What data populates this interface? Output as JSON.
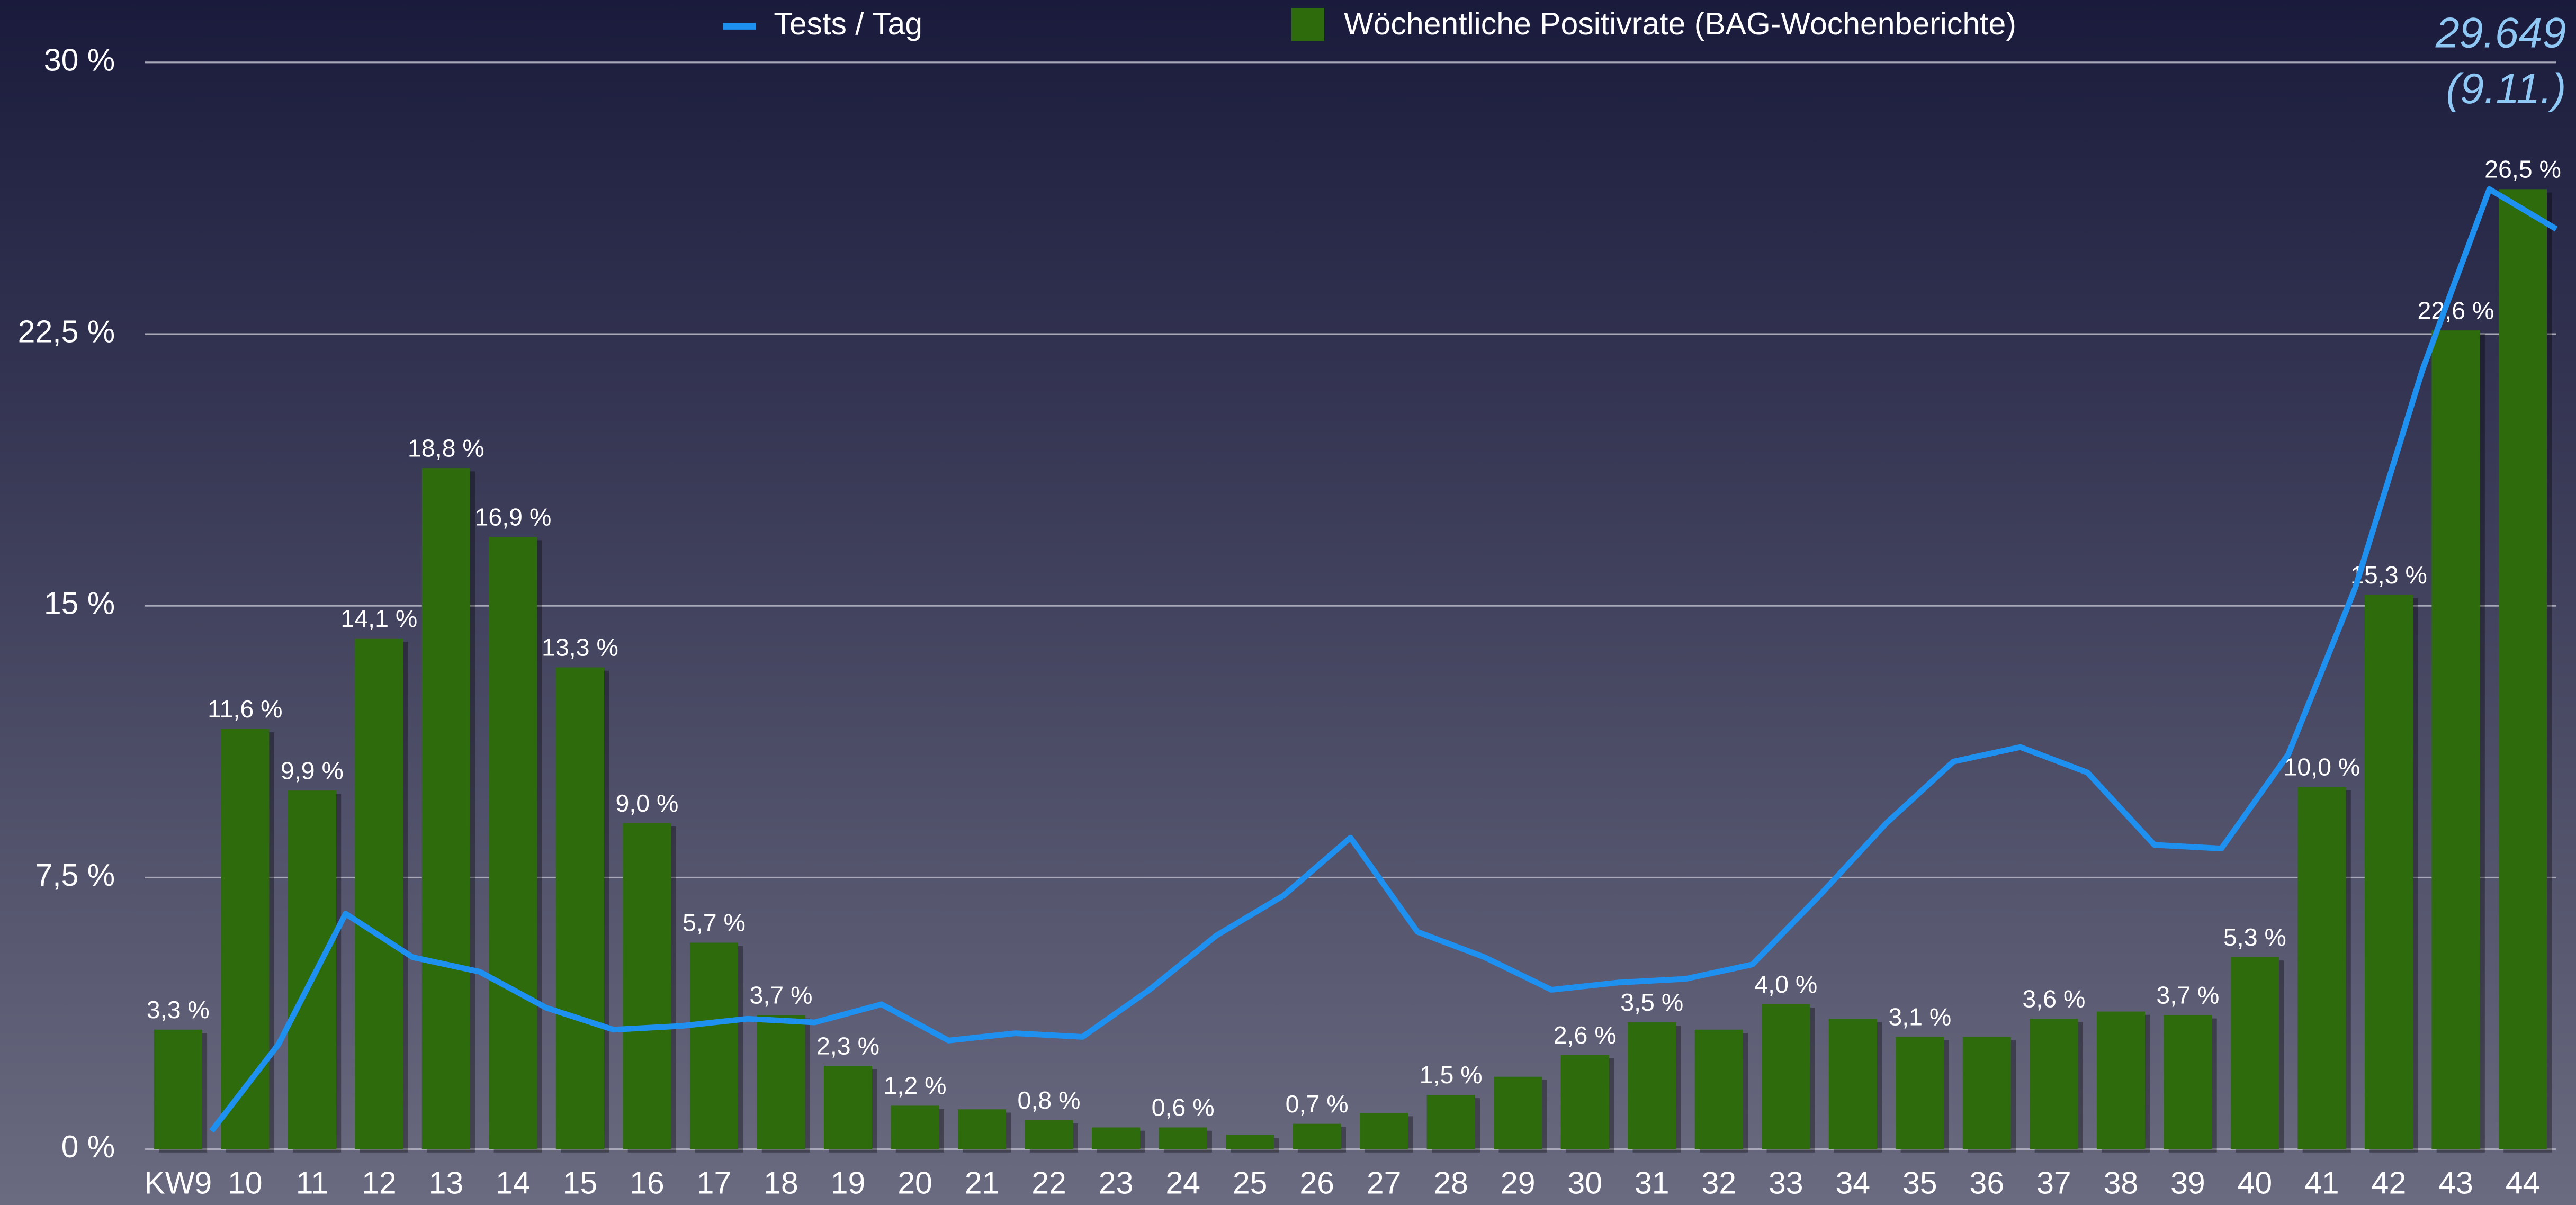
{
  "chart_data": {
    "type": "bar",
    "categories": [
      "KW9",
      "10",
      "11",
      "12",
      "13",
      "14",
      "15",
      "16",
      "17",
      "18",
      "19",
      "20",
      "21",
      "22",
      "23",
      "24",
      "25",
      "26",
      "27",
      "28",
      "29",
      "30",
      "31",
      "32",
      "33",
      "34",
      "35",
      "36",
      "37",
      "38",
      "39",
      "40",
      "41",
      "42",
      "43",
      "44"
    ],
    "series": [
      {
        "name": "Wöchentliche Positivrate (BAG-Wochenberichte)",
        "type": "bar",
        "color": "#2e6b0c",
        "values": [
          3.3,
          11.6,
          9.9,
          14.1,
          18.8,
          16.9,
          13.3,
          9.0,
          5.7,
          3.7,
          2.3,
          1.2,
          1.1,
          0.8,
          0.6,
          0.6,
          0.4,
          0.7,
          1.0,
          1.5,
          2.0,
          2.6,
          3.5,
          3.3,
          4.0,
          3.6,
          3.1,
          3.1,
          3.6,
          3.8,
          3.7,
          5.3,
          10.0,
          15.3,
          22.6,
          26.5
        ],
        "value_labels": [
          "3,3 %",
          "11,6 %",
          "9,9 %",
          "14,1 %",
          "18,8 %",
          "16,9 %",
          "13,3 %",
          "9,0 %",
          "5,7 %",
          "3,7 %",
          "2,3 %",
          "1,2 %",
          null,
          "0,8 %",
          null,
          "0,6 %",
          null,
          "0,7 %",
          null,
          "1,5 %",
          null,
          "2,6 %",
          "3,5 %",
          null,
          "4,0 %",
          null,
          "3,1 %",
          null,
          "3,6 %",
          null,
          "3,7 %",
          "5,3 %",
          "10,0 %",
          "15,3 %",
          "22,6 %",
          "26,5 %"
        ]
      },
      {
        "name": "Tests / Tag",
        "type": "line",
        "color": "#1e90f0",
        "values": [
          0.5,
          2.9,
          6.5,
          5.3,
          4.9,
          3.9,
          3.3,
          3.4,
          3.6,
          3.5,
          4.0,
          3.0,
          3.2,
          3.1,
          4.4,
          5.9,
          7.0,
          8.6,
          6.0,
          5.3,
          4.4,
          4.6,
          4.7,
          5.1,
          7.0,
          9.0,
          10.7,
          11.1,
          10.4,
          8.4,
          8.3,
          10.9,
          15.5,
          21.5,
          26.5,
          25.4
        ]
      }
    ],
    "annotations": [
      "29.649",
      "(9.11.)"
    ],
    "ylim": [
      0,
      30
    ],
    "yticks": [
      {
        "value": 0,
        "label": "0 %"
      },
      {
        "value": 7.5,
        "label": "7,5 %"
      },
      {
        "value": 15,
        "label": "15 %"
      },
      {
        "value": 22.5,
        "label": "22,5 %"
      },
      {
        "value": 30,
        "label": "30 %"
      }
    ],
    "grid": true
  }
}
